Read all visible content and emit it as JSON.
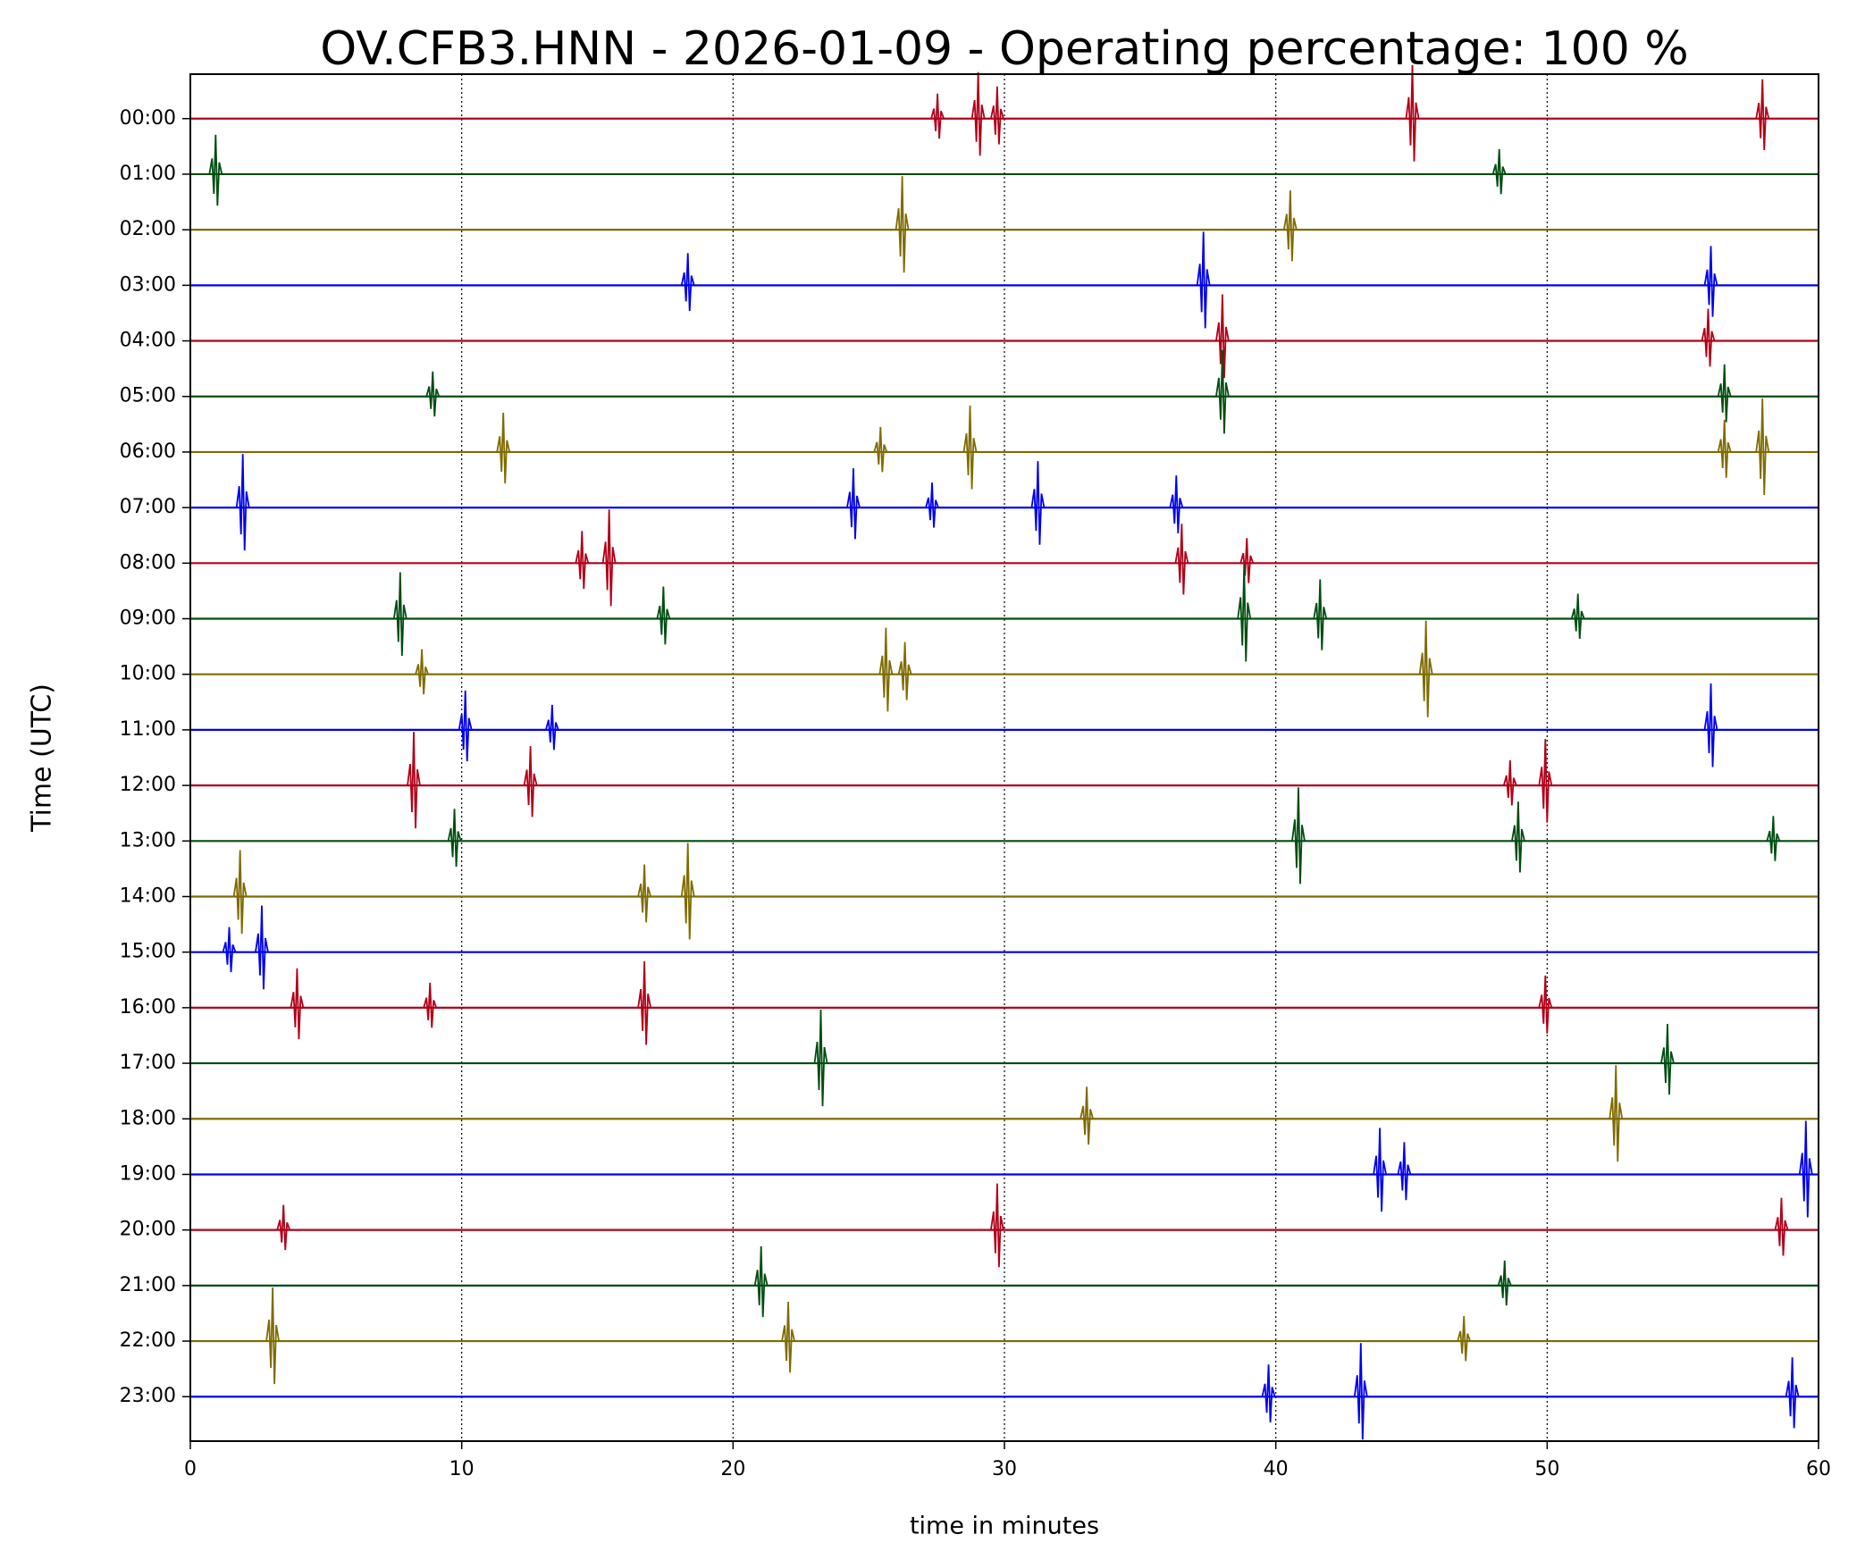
{
  "chart_data": {
    "type": "helicorder",
    "title": "OV.CFB3.HNN - 2026-01-09 - Operating percentage: 100 %",
    "ylabel": "Time (UTC)",
    "xlabel": "time in minutes",
    "xlim": [
      0,
      60
    ],
    "xticks": [
      0,
      10,
      20,
      30,
      40,
      50,
      60
    ],
    "grid": true,
    "colors": [
      "#b00018",
      "#004d10",
      "#7f6b00",
      "#0000ee"
    ],
    "categories": [
      "00:00",
      "01:00",
      "02:00",
      "03:00",
      "04:00",
      "05:00",
      "06:00",
      "07:00",
      "08:00",
      "09:00",
      "10:00",
      "11:00",
      "12:00",
      "13:00",
      "14:00",
      "15:00",
      "16:00",
      "17:00",
      "18:00",
      "19:00",
      "20:00",
      "21:00",
      "22:00",
      "23:00"
    ],
    "events": [
      [
        27.5,
        29.0,
        29.7,
        45.0,
        57.9
      ],
      [
        0.9,
        48.2
      ],
      [
        26.2,
        40.5
      ],
      [
        18.3,
        37.3,
        56.0
      ],
      [
        38.0,
        55.9
      ],
      [
        8.9,
        38.0,
        56.5
      ],
      [
        11.5,
        25.4,
        28.7,
        56.5,
        57.9
      ],
      [
        1.9,
        24.4,
        27.3,
        31.2,
        36.3
      ],
      [
        14.4,
        15.4,
        36.5,
        38.9
      ],
      [
        7.7,
        17.4,
        38.8,
        41.6,
        51.1
      ],
      [
        8.5,
        25.6,
        26.3,
        45.5
      ],
      [
        10.1,
        13.3,
        56.0
      ],
      [
        8.2,
        12.5,
        48.6,
        49.9
      ],
      [
        9.7,
        40.8,
        48.9,
        58.3
      ],
      [
        1.8,
        16.7,
        18.3
      ],
      [
        1.4,
        2.6
      ],
      [
        3.9,
        8.8,
        16.7,
        49.9
      ],
      [
        23.2,
        54.4
      ],
      [
        33.0,
        52.5
      ],
      [
        43.8,
        44.7,
        59.5
      ],
      [
        3.4,
        29.7,
        58.6
      ],
      [
        21.0,
        48.4
      ],
      [
        3.0,
        22.0,
        46.9
      ],
      [
        39.7,
        43.1,
        59.0
      ]
    ]
  }
}
